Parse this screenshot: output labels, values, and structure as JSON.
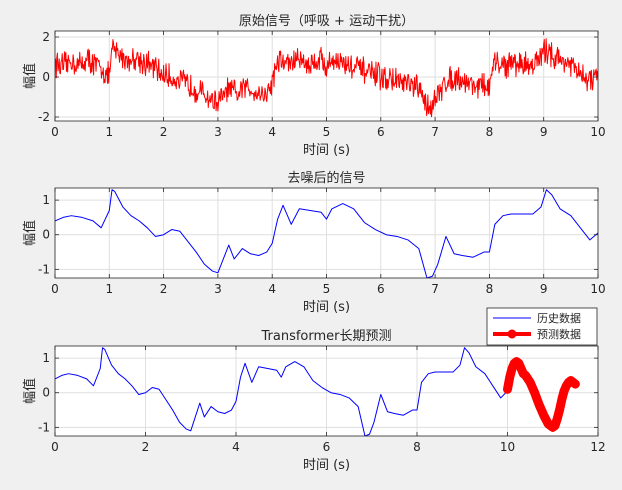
{
  "chart_data": [
    {
      "type": "line",
      "title": "原始信号（呼吸 + 运动干扰）",
      "xlabel": "时间 (s)",
      "ylabel": "幅值",
      "xlim": [
        0,
        10
      ],
      "ylim": [
        -2.2,
        2.3
      ],
      "xticks": [
        0,
        1,
        2,
        3,
        4,
        5,
        6,
        7,
        8,
        9,
        10
      ],
      "yticks": [
        -2,
        0,
        2
      ],
      "grid": true,
      "series": [
        {
          "color": "#ff0000",
          "noisy": true,
          "x": [
            0,
            0.15,
            0.3,
            0.45,
            0.6,
            0.75,
            0.9,
            1.0,
            1.05,
            1.2,
            1.35,
            1.5,
            1.65,
            1.8,
            2.0,
            2.2,
            2.4,
            2.6,
            2.8,
            3.0,
            3.2,
            3.35,
            3.5,
            3.7,
            3.9,
            4.0,
            4.1,
            4.3,
            4.5,
            4.7,
            4.9,
            5.0,
            5.1,
            5.3,
            5.5,
            5.7,
            5.9,
            6.1,
            6.3,
            6.5,
            6.7,
            6.85,
            7.0,
            7.2,
            7.4,
            7.6,
            7.8,
            8.0,
            8.1,
            8.3,
            8.5,
            8.7,
            8.9,
            9.05,
            9.2,
            9.4,
            9.6,
            9.8,
            10.0
          ],
          "y": [
            0.7,
            0.5,
            0.8,
            0.6,
            0.9,
            0.6,
            0.3,
            0.0,
            1.4,
            1.1,
            0.8,
            1.0,
            0.7,
            0.5,
            0.1,
            -0.1,
            -0.3,
            -0.6,
            -1.0,
            -1.3,
            -0.6,
            -0.9,
            -0.5,
            -0.7,
            -0.9,
            -0.2,
            0.8,
            0.7,
            0.9,
            0.6,
            1.0,
            0.4,
            0.9,
            0.7,
            0.5,
            0.3,
            0.1,
            -0.1,
            -0.2,
            -0.4,
            -0.6,
            -1.5,
            -1.2,
            -0.2,
            0.0,
            -0.3,
            -0.4,
            -0.5,
            0.7,
            0.6,
            0.7,
            0.6,
            0.8,
            1.4,
            1.0,
            0.8,
            0.3,
            -0.2,
            0.0
          ]
        }
      ]
    },
    {
      "type": "line",
      "title": "去噪后的信号",
      "xlabel": "时间 (s)",
      "ylabel": "幅值",
      "xlim": [
        0,
        10
      ],
      "ylim": [
        -1.25,
        1.35
      ],
      "xticks": [
        0,
        1,
        2,
        3,
        4,
        5,
        6,
        7,
        8,
        9,
        10
      ],
      "yticks": [
        -1,
        0,
        1
      ],
      "grid": true,
      "series": [
        {
          "color": "#0000ff",
          "x": [
            0,
            0.15,
            0.3,
            0.5,
            0.7,
            0.85,
            1.0,
            1.05,
            1.1,
            1.25,
            1.4,
            1.55,
            1.7,
            1.85,
            2.0,
            2.15,
            2.3,
            2.45,
            2.6,
            2.75,
            2.9,
            3.0,
            3.1,
            3.2,
            3.3,
            3.45,
            3.6,
            3.75,
            3.9,
            4.0,
            4.1,
            4.2,
            4.35,
            4.5,
            4.7,
            4.9,
            5.0,
            5.1,
            5.3,
            5.5,
            5.7,
            5.9,
            6.1,
            6.3,
            6.5,
            6.7,
            6.85,
            6.95,
            7.05,
            7.2,
            7.35,
            7.5,
            7.7,
            7.9,
            8.0,
            8.1,
            8.25,
            8.4,
            8.6,
            8.8,
            8.95,
            9.05,
            9.15,
            9.3,
            9.5,
            9.7,
            9.85,
            10.0
          ],
          "y": [
            0.4,
            0.5,
            0.55,
            0.5,
            0.4,
            0.2,
            0.7,
            1.3,
            1.25,
            0.8,
            0.55,
            0.4,
            0.2,
            -0.05,
            0.0,
            0.15,
            0.1,
            -0.2,
            -0.5,
            -0.85,
            -1.05,
            -1.1,
            -0.7,
            -0.3,
            -0.7,
            -0.4,
            -0.55,
            -0.6,
            -0.5,
            -0.25,
            0.45,
            0.85,
            0.3,
            0.75,
            0.7,
            0.65,
            0.45,
            0.75,
            0.9,
            0.75,
            0.35,
            0.15,
            0.0,
            -0.05,
            -0.15,
            -0.4,
            -1.25,
            -1.2,
            -0.85,
            -0.05,
            -0.55,
            -0.6,
            -0.65,
            -0.5,
            -0.5,
            0.3,
            0.55,
            0.6,
            0.6,
            0.6,
            0.8,
            1.3,
            1.15,
            0.75,
            0.55,
            0.15,
            -0.15,
            0.05
          ]
        }
      ]
    },
    {
      "type": "line",
      "title": "Transformer长期预测",
      "xlabel": "时间 (s)",
      "ylabel": "幅值",
      "xlim": [
        0,
        12
      ],
      "ylim": [
        -1.25,
        1.35
      ],
      "xticks": [
        0,
        2,
        4,
        6,
        8,
        10,
        12
      ],
      "yticks": [
        -1,
        0,
        1
      ],
      "grid": true,
      "legend": {
        "placement": "top-right",
        "entries": [
          "历史数据",
          "预测数据"
        ]
      },
      "series": [
        {
          "name": "历史数据",
          "color": "#0000ff",
          "x": [
            0,
            0.15,
            0.3,
            0.5,
            0.7,
            0.85,
            1.0,
            1.05,
            1.1,
            1.25,
            1.4,
            1.55,
            1.7,
            1.85,
            2.0,
            2.15,
            2.3,
            2.45,
            2.6,
            2.75,
            2.9,
            3.0,
            3.1,
            3.2,
            3.3,
            3.45,
            3.6,
            3.75,
            3.9,
            4.0,
            4.1,
            4.2,
            4.35,
            4.5,
            4.7,
            4.9,
            5.0,
            5.1,
            5.3,
            5.5,
            5.7,
            5.9,
            6.1,
            6.3,
            6.5,
            6.7,
            6.85,
            6.95,
            7.05,
            7.2,
            7.35,
            7.5,
            7.7,
            7.9,
            8.0,
            8.1,
            8.25,
            8.4,
            8.6,
            8.8,
            8.95,
            9.05,
            9.15,
            9.3,
            9.5,
            9.7,
            9.85,
            10.0
          ],
          "y": [
            0.4,
            0.5,
            0.55,
            0.5,
            0.4,
            0.2,
            0.7,
            1.3,
            1.25,
            0.8,
            0.55,
            0.4,
            0.2,
            -0.05,
            0.0,
            0.15,
            0.1,
            -0.2,
            -0.5,
            -0.85,
            -1.05,
            -1.1,
            -0.7,
            -0.3,
            -0.7,
            -0.4,
            -0.55,
            -0.6,
            -0.5,
            -0.25,
            0.45,
            0.85,
            0.3,
            0.75,
            0.7,
            0.65,
            0.45,
            0.75,
            0.9,
            0.75,
            0.35,
            0.15,
            0.0,
            -0.05,
            -0.15,
            -0.4,
            -1.25,
            -1.2,
            -0.85,
            -0.05,
            -0.55,
            -0.6,
            -0.65,
            -0.5,
            -0.5,
            0.3,
            0.55,
            0.6,
            0.6,
            0.6,
            0.8,
            1.3,
            1.15,
            0.75,
            0.55,
            0.15,
            -0.15,
            0.05
          ]
        },
        {
          "name": "预测数据",
          "color": "#ff0000",
          "thick": true,
          "x": [
            10.0,
            10.05,
            10.1,
            10.15,
            10.2,
            10.25,
            10.3,
            10.35,
            10.4,
            10.5,
            10.6,
            10.7,
            10.8,
            10.9,
            11.0,
            11.05,
            11.1,
            11.15,
            11.2,
            11.25,
            11.3,
            11.35,
            11.4,
            11.45,
            11.5
          ],
          "y": [
            0.1,
            0.45,
            0.7,
            0.85,
            0.9,
            0.85,
            0.7,
            0.55,
            0.5,
            0.3,
            0.0,
            -0.35,
            -0.65,
            -0.9,
            -1.0,
            -0.95,
            -0.75,
            -0.5,
            -0.2,
            0.05,
            0.2,
            0.3,
            0.35,
            0.3,
            0.25
          ]
        }
      ]
    }
  ]
}
